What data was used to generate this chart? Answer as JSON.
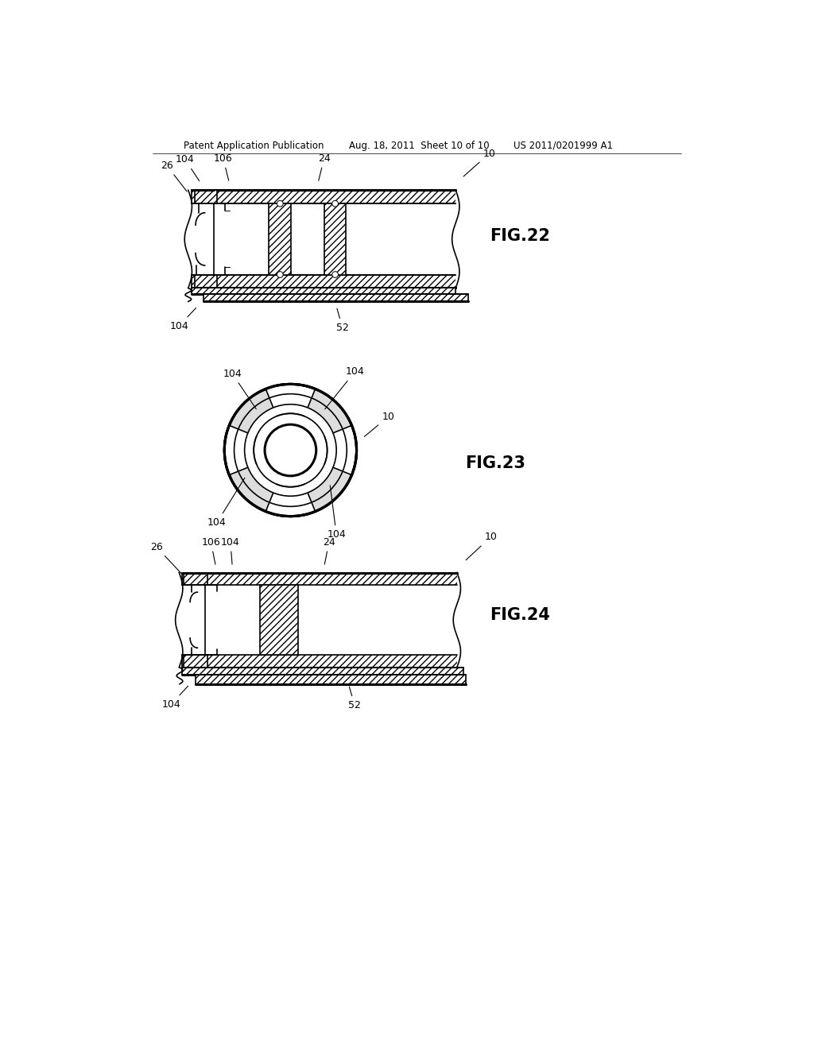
{
  "bg_color": "#ffffff",
  "line_color": "#000000",
  "header_text_left": "Patent Application Publication",
  "header_text_mid": "Aug. 18, 2011  Sheet 10 of 10",
  "header_text_right": "US 2011/0201999 A1",
  "fig22_label": "FIG.22",
  "fig23_label": "FIG.23",
  "fig24_label": "FIG.24"
}
